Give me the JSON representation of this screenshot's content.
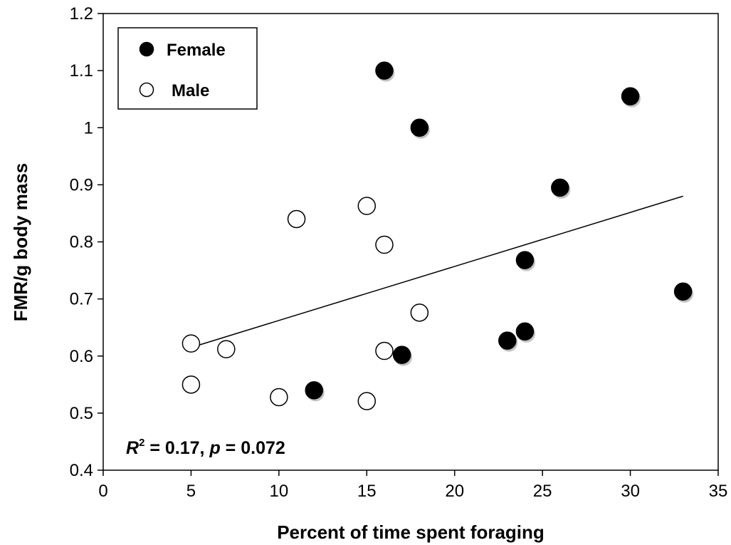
{
  "chart_data": {
    "type": "scatter",
    "xlabel": "Percent of time spent foraging",
    "ylabel": "FMR/g body mass",
    "xlim": [
      0,
      35
    ],
    "ylim": [
      0.4,
      1.2
    ],
    "xticks": [
      0,
      5,
      10,
      15,
      20,
      25,
      30,
      35
    ],
    "yticks": [
      0.4,
      0.5,
      0.6,
      0.7,
      0.8,
      0.9,
      1,
      1.1,
      1.2
    ],
    "ytick_labels": [
      "0.4",
      "0.5",
      "0.6",
      "0.7",
      "0.8",
      "0.9",
      "1",
      "1.1",
      "1.2"
    ],
    "grid": false,
    "legend": {
      "placement": "top-left"
    },
    "series": [
      {
        "name": "Female",
        "marker": "filled-circle",
        "color": "#000000",
        "points": [
          {
            "x": 16,
            "y": 1.1
          },
          {
            "x": 18,
            "y": 1.0
          },
          {
            "x": 30,
            "y": 1.055
          },
          {
            "x": 26,
            "y": 0.895
          },
          {
            "x": 24,
            "y": 0.768
          },
          {
            "x": 33,
            "y": 0.713
          },
          {
            "x": 24,
            "y": 0.643
          },
          {
            "x": 23,
            "y": 0.627
          },
          {
            "x": 17,
            "y": 0.602
          },
          {
            "x": 12,
            "y": 0.54
          }
        ]
      },
      {
        "name": "Male",
        "marker": "open-circle",
        "color": "#000000",
        "points": [
          {
            "x": 15,
            "y": 0.863
          },
          {
            "x": 11,
            "y": 0.84
          },
          {
            "x": 16,
            "y": 0.795
          },
          {
            "x": 18,
            "y": 0.676
          },
          {
            "x": 5,
            "y": 0.622
          },
          {
            "x": 7,
            "y": 0.612
          },
          {
            "x": 16,
            "y": 0.609
          },
          {
            "x": 5,
            "y": 0.55
          },
          {
            "x": 10,
            "y": 0.528
          },
          {
            "x": 15,
            "y": 0.521
          }
        ]
      }
    ],
    "trendline": {
      "x": [
        5,
        33
      ],
      "y": [
        0.615,
        0.88
      ]
    },
    "annotation": {
      "r_symbol": "R",
      "r_exponent": "2",
      "r_value": " = 0.17, ",
      "p_symbol": "p",
      "p_value": " = 0.072"
    }
  }
}
